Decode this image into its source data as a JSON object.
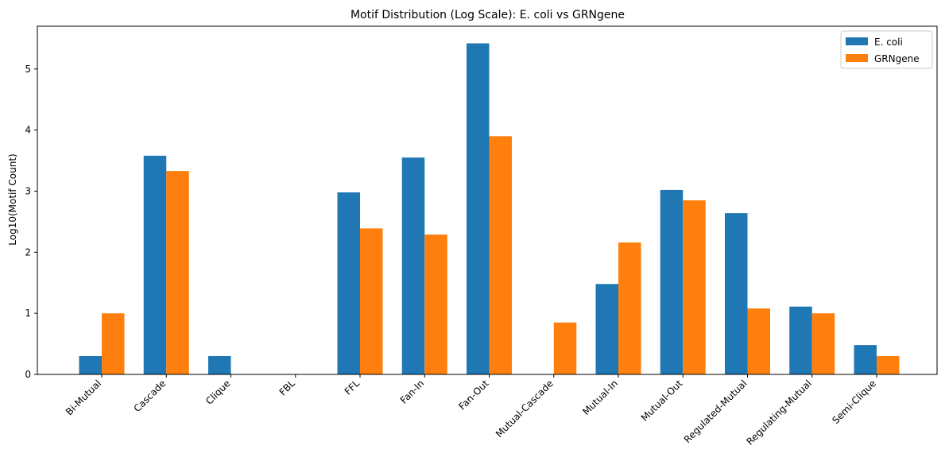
{
  "chart_data": {
    "type": "bar",
    "title": "Motif Distribution (Log Scale): E. coli vs GRNgene",
    "xlabel": "",
    "ylabel": "Log10(Motif Count)",
    "ylim": [
      0,
      5.7
    ],
    "yticks": [
      "0",
      "1",
      "2",
      "3",
      "4",
      "5"
    ],
    "grid": false,
    "legend_position": "top-right",
    "categories": [
      "Bi-Mutual",
      "Cascade",
      "Clique",
      "FBL",
      "FFL",
      "Fan-In",
      "Fan-Out",
      "Mutual-Cascade",
      "Mutual-In",
      "Mutual-Out",
      "Regulated-Mutual",
      "Regulating-Mutual",
      "Semi-Clique"
    ],
    "series": [
      {
        "name": "E. coli",
        "color": "#1f77b4",
        "values": [
          0.3,
          3.58,
          0.3,
          0,
          2.98,
          3.55,
          5.42,
          0,
          1.48,
          3.02,
          2.64,
          1.11,
          0.48
        ]
      },
      {
        "name": "GRNgene",
        "color": "#ff7f0e",
        "values": [
          1.0,
          3.33,
          0,
          0,
          2.39,
          2.29,
          3.9,
          0.85,
          2.16,
          2.85,
          1.08,
          1.0,
          0.3
        ]
      }
    ]
  }
}
